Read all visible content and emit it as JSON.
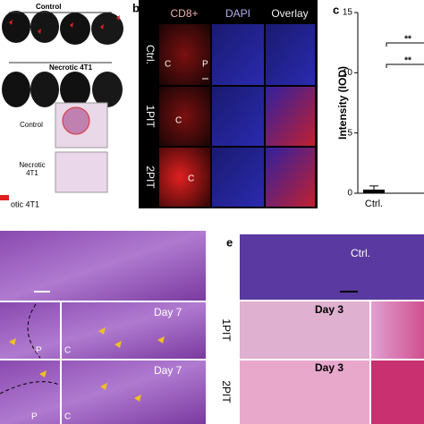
{
  "panel_a": {
    "photo_labels": [
      "Control",
      "Necrotic 4T1"
    ],
    "histology_labels": [
      "Control",
      "Necrotic 4T1"
    ],
    "legend": "otic 4T1"
  },
  "panel_b": {
    "label": "b",
    "columns": [
      "CD8+",
      "DAPI",
      "Overlay"
    ],
    "rows": [
      "Ctrl.",
      "1PIT",
      "2PIT"
    ],
    "annotations": [
      "C",
      "P",
      "C",
      "C"
    ]
  },
  "panel_c": {
    "label": "c",
    "type": "bar",
    "y_label": "Intensity (IOD)",
    "categories": [
      "Ctrl."
    ],
    "values": [
      0.3
    ],
    "errors": [
      0.3
    ],
    "ylim": [
      0,
      15
    ],
    "yticks": [
      0,
      5,
      10,
      15
    ],
    "significance": [
      "**",
      "**"
    ]
  },
  "panel_d": {
    "annotations": [
      "Day 7",
      "Day 7"
    ],
    "region_labels": [
      "P",
      "C",
      "P",
      "C"
    ]
  },
  "panel_e": {
    "label": "e",
    "rows": [
      "Ctrl.",
      "1PIT",
      "2PIT"
    ],
    "annotations": [
      "Day 3",
      "Day 3"
    ]
  }
}
